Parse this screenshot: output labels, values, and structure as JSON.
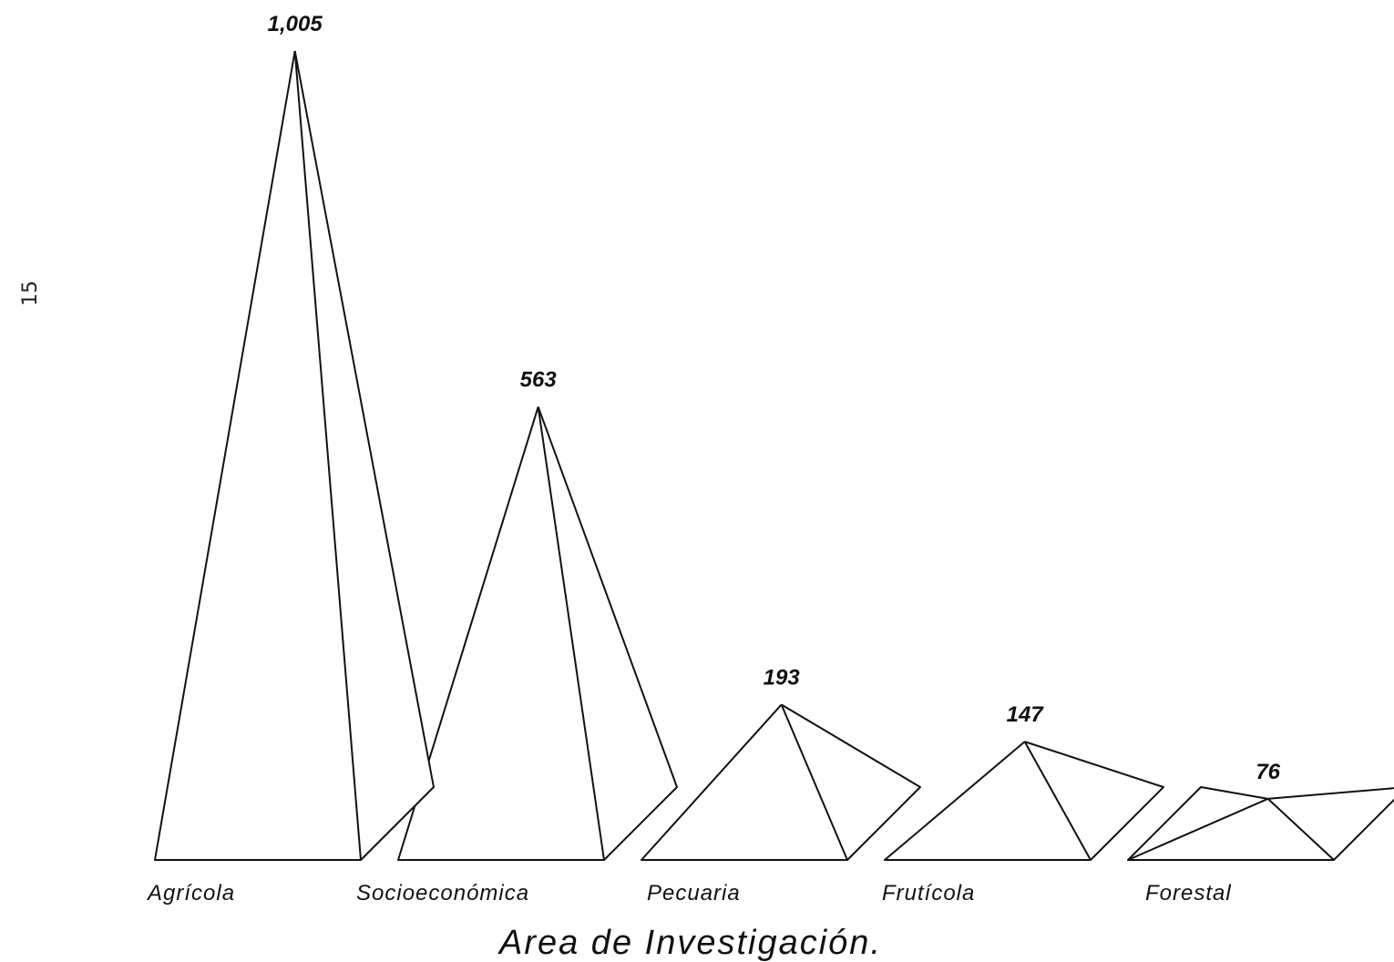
{
  "page_number": "15",
  "chart_data": {
    "type": "bar",
    "style": "3d-pyramid",
    "categories": [
      "Agrícola",
      "Socioeconómica",
      "Pecuaria",
      "Frutícola",
      "Forestal"
    ],
    "values": [
      1005,
      563,
      193,
      147,
      76
    ],
    "value_labels": [
      "1,005",
      "563",
      "193",
      "147",
      "76"
    ],
    "xlabel": "Area de Investigación.",
    "ylabel": "",
    "title": "",
    "grid": false,
    "legend": "none"
  }
}
